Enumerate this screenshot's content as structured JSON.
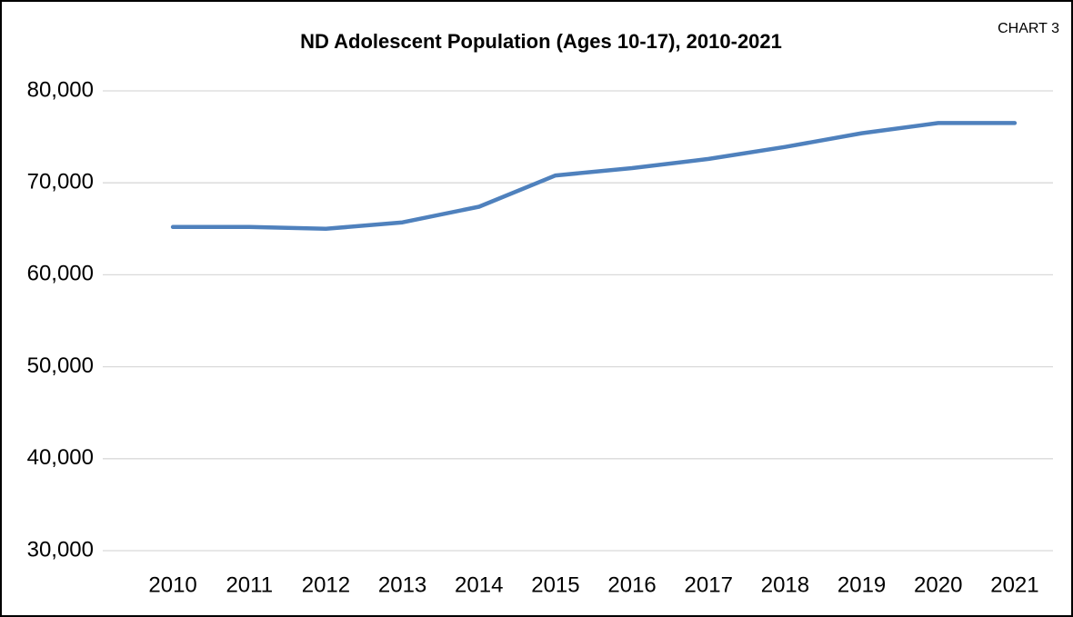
{
  "chart_data": {
    "type": "line",
    "title": "ND Adolescent Population (Ages 10-17), 2010-2021",
    "annotation": "CHART 3",
    "categories": [
      "2010",
      "2011",
      "2012",
      "2013",
      "2014",
      "2015",
      "2016",
      "2017",
      "2018",
      "2019",
      "2020",
      "2021"
    ],
    "values": [
      65200,
      65200,
      65000,
      65700,
      67400,
      70800,
      71600,
      72600,
      73900,
      75400,
      76500,
      76500
    ],
    "color": "#4f81bd",
    "ylim": [
      30000,
      80000
    ],
    "yticks": [
      {
        "value": 30000,
        "label": "30,000"
      },
      {
        "value": 40000,
        "label": "40,000"
      },
      {
        "value": 50000,
        "label": "50,000"
      },
      {
        "value": 60000,
        "label": "60,000"
      },
      {
        "value": 70000,
        "label": "70,000"
      },
      {
        "value": 80000,
        "label": "80,000"
      }
    ],
    "grid": true
  }
}
